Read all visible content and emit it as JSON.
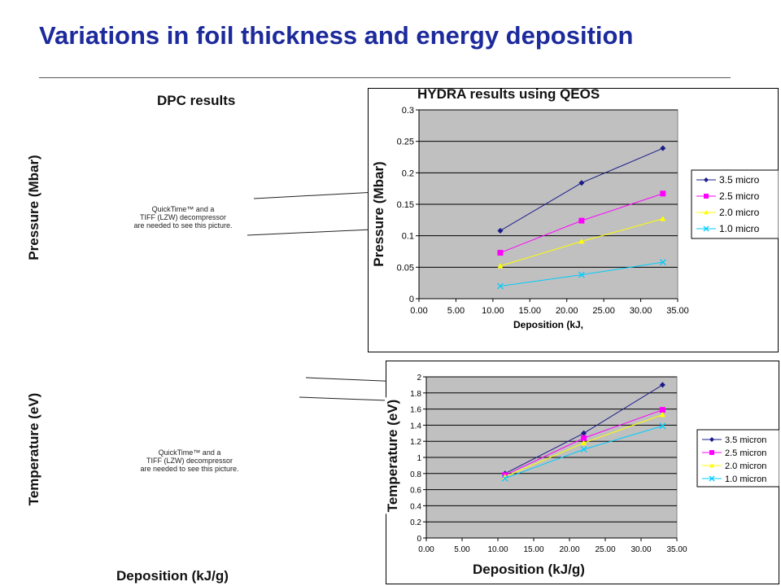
{
  "slide": {
    "title": "Variations in foil thickness and energy deposition",
    "dpc_label": "DPC results",
    "hydra_label": "HYDRA results using QEOS",
    "left_ylabel_top": "Pressure (Mbar)",
    "left_ylabel_bottom": "Temperature (eV)",
    "left_xlabel": "Deposition (kJ/g)",
    "placeholder_top": [
      "QuickTime™ and a",
      "TIFF (LZW) decompressor",
      "are needed to see this picture."
    ],
    "placeholder_bottom": [
      "QuickTime™ and a",
      "TIFF (LZW) decompressor",
      "are needed to see this picture."
    ]
  },
  "chart_data": [
    {
      "type": "line",
      "title": "",
      "xlabel": "Deposition (kJ,",
      "ylabel_overlay": "Pressure (Mbar)",
      "xlim": [
        0,
        35
      ],
      "ylim": [
        0,
        0.3
      ],
      "xticks": [
        "0.00",
        "5.00",
        "10.00",
        "15.00",
        "20.00",
        "25.00",
        "30.00",
        "35.00"
      ],
      "yticks": [
        "0",
        "0.05",
        "0.1",
        "0.15",
        "0.2",
        "0.25",
        "0.3"
      ],
      "ytick_values": [
        0,
        0.05,
        0.1,
        0.15,
        0.2,
        0.25,
        0.3
      ],
      "grid": true,
      "legend_position": "right",
      "series": [
        {
          "name": "3.5 micro",
          "color": "#1a1a8a",
          "marker": "diamond",
          "x": [
            11,
            22,
            33
          ],
          "y": [
            0.108,
            0.184,
            0.239
          ]
        },
        {
          "name": "2.5 micro",
          "color": "#ff00ff",
          "marker": "square",
          "x": [
            11,
            22,
            33
          ],
          "y": [
            0.073,
            0.124,
            0.167
          ]
        },
        {
          "name": "2.0 micro",
          "color": "#ffff00",
          "marker": "triangle",
          "x": [
            11,
            22,
            33
          ],
          "y": [
            0.052,
            0.091,
            0.127
          ]
        },
        {
          "name": "1.0 micro",
          "color": "#00ccff",
          "marker": "x",
          "x": [
            11,
            22,
            33
          ],
          "y": [
            0.02,
            0.038,
            0.058
          ]
        }
      ]
    },
    {
      "type": "line",
      "title": "",
      "xlabel": "Deposition (kJ/g)",
      "ylabel_overlay": "Temperature (eV)",
      "xlim": [
        0,
        35
      ],
      "ylim": [
        0,
        2
      ],
      "xticks": [
        "0.00",
        "5.00",
        "10.00",
        "15.00",
        "20.00",
        "25.00",
        "30.00",
        "35.00"
      ],
      "yticks": [
        "0",
        "0.2",
        "0.4",
        "0.6",
        "0.8",
        "1",
        "1.2",
        "1.4",
        "1.6",
        "1.8",
        "2"
      ],
      "ytick_values": [
        0,
        0.2,
        0.4,
        0.6,
        0.8,
        1.0,
        1.2,
        1.4,
        1.6,
        1.8,
        2.0
      ],
      "grid": true,
      "legend_position": "right",
      "series": [
        {
          "name": "3.5 micron",
          "color": "#1a1a8a",
          "marker": "diamond",
          "x": [
            11,
            22,
            33
          ],
          "y": [
            0.8,
            1.3,
            1.9
          ]
        },
        {
          "name": "2.5 micron",
          "color": "#ff00ff",
          "marker": "square",
          "x": [
            11,
            22,
            33
          ],
          "y": [
            0.78,
            1.24,
            1.59
          ]
        },
        {
          "name": "2.0 micron",
          "color": "#ffff00",
          "marker": "triangle",
          "x": [
            11,
            22,
            33
          ],
          "y": [
            0.76,
            1.18,
            1.53
          ]
        },
        {
          "name": "1.0 micron",
          "color": "#00ccff",
          "marker": "x",
          "x": [
            11,
            22,
            33
          ],
          "y": [
            0.74,
            1.1,
            1.39
          ]
        }
      ]
    }
  ]
}
